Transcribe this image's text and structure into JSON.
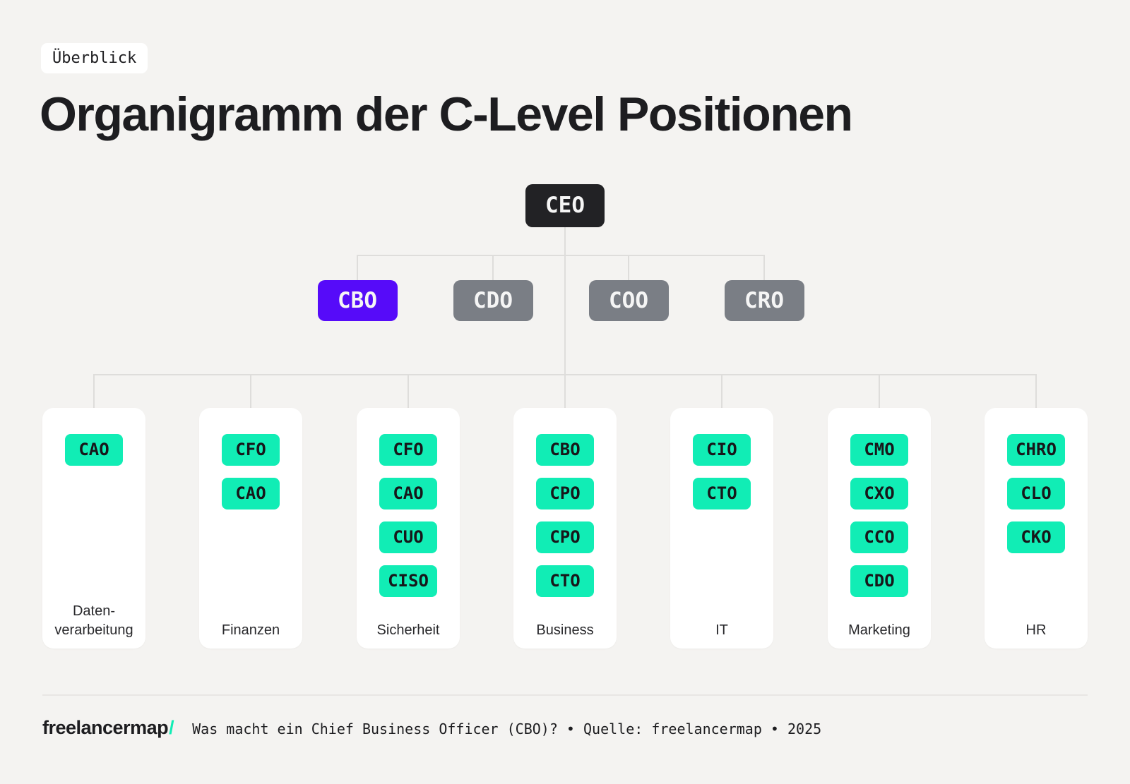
{
  "badge": "Überblick",
  "title": "Organigramm der C-Level Positionen",
  "org": {
    "ceo": "CEO",
    "level2": [
      {
        "label": "CBO",
        "highlight": true
      },
      {
        "label": "CDO",
        "highlight": false
      },
      {
        "label": "COO",
        "highlight": false
      },
      {
        "label": "CRO",
        "highlight": false
      }
    ],
    "departments": [
      {
        "label_lines": [
          "Daten-",
          "verarbeitung"
        ],
        "roles": [
          "CAO"
        ]
      },
      {
        "label_lines": [
          "Finanzen"
        ],
        "roles": [
          "CFO",
          "CAO"
        ]
      },
      {
        "label_lines": [
          "Sicherheit"
        ],
        "roles": [
          "CFO",
          "CAO",
          "CUO",
          "CISO"
        ]
      },
      {
        "label_lines": [
          "Business"
        ],
        "roles": [
          "CBO",
          "CPO",
          "CPO",
          "CTO"
        ]
      },
      {
        "label_lines": [
          "IT"
        ],
        "roles": [
          "CIO",
          "CTO"
        ]
      },
      {
        "label_lines": [
          "Marketing"
        ],
        "roles": [
          "CMO",
          "CXO",
          "CCO",
          "CDO"
        ]
      },
      {
        "label_lines": [
          "HR"
        ],
        "roles": [
          "CHRO",
          "CLO",
          "CKO"
        ]
      }
    ]
  },
  "footer": {
    "logo_text": "freelancermap",
    "logo_slash": "/",
    "caption": "Was macht ein Chief Business Officer (CBO)? • Quelle: freelancermap • 2025"
  },
  "colors": {
    "accent_purple": "#560bf9",
    "mint_green": "#11edb5",
    "node_dark": "#222225",
    "node_gray": "#7a7e85",
    "background": "#f4f3f1"
  }
}
